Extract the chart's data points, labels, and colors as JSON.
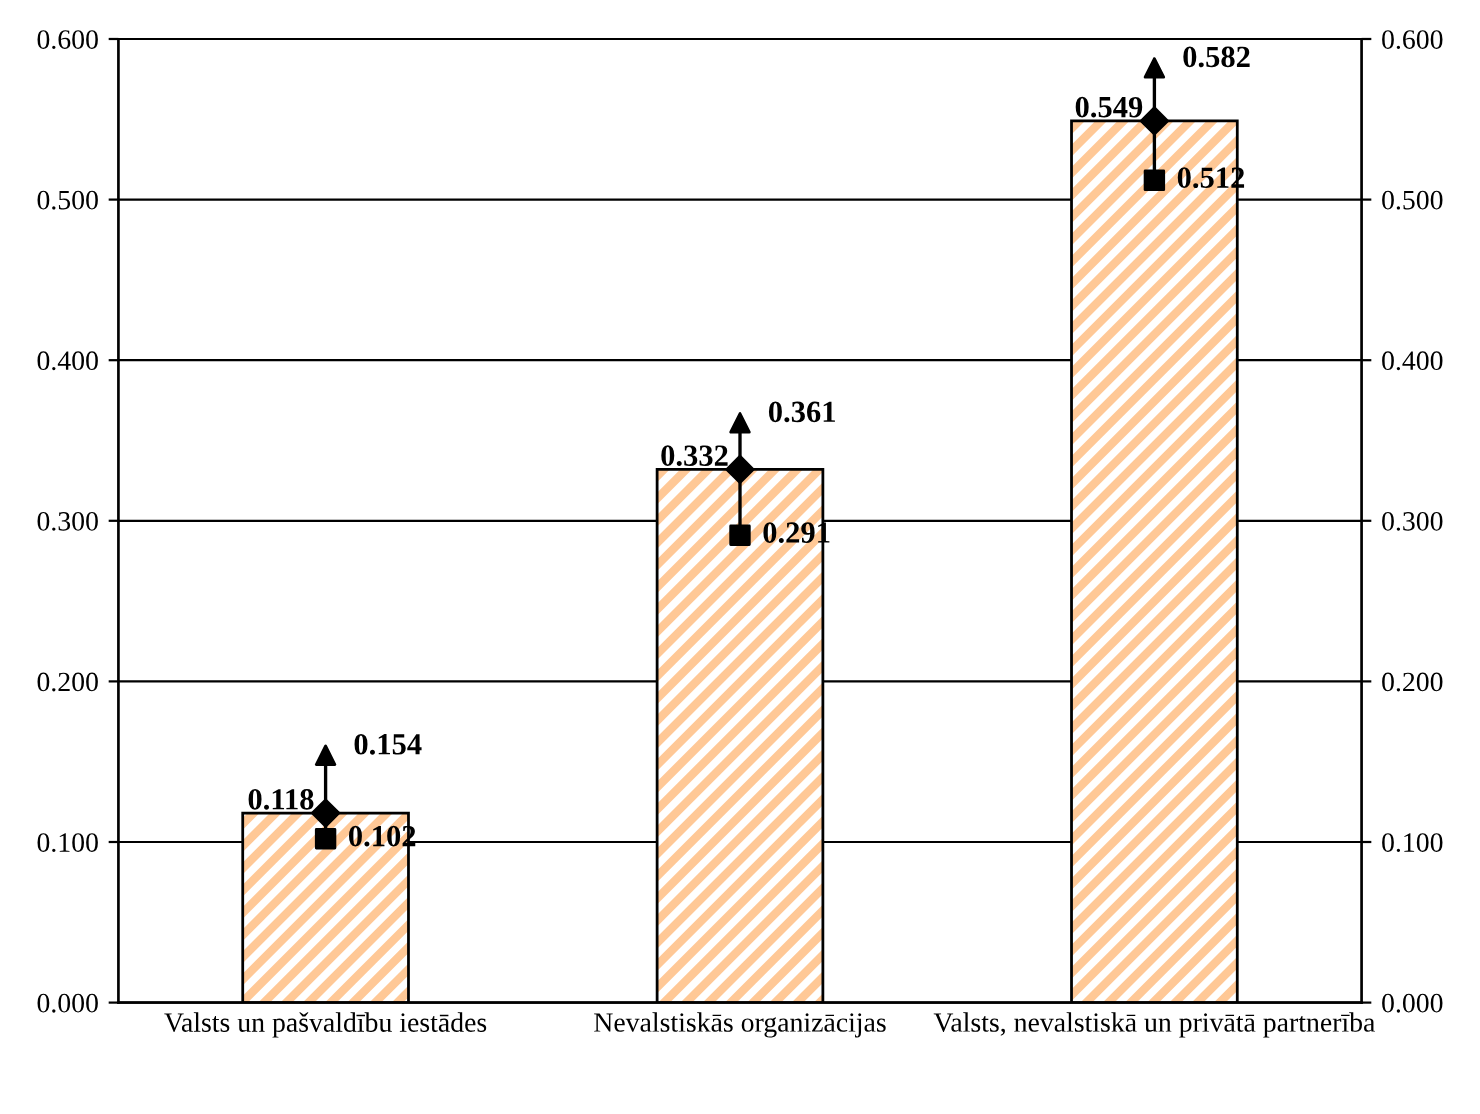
{
  "chart_data": {
    "type": "bar",
    "categories": [
      "Valsts un pašvaldību iestādes",
      "Nevalstiskās organizācijas",
      "Valsts, nevalstiskā un privātā partnerība"
    ],
    "series": [
      {
        "color": "#ffc896",
        "values": [
          0.118,
          0.332,
          0.549
        ]
      },
      {
        "type": "scatter",
        "marker": "diamond",
        "color": "#000000",
        "x": [
          "Valsts un pašvaldību iestādes",
          "Nevalstiskās organizācijas",
          "Valsts, nevalstiskā un privātā partnerība"
        ],
        "values": [
          0.118,
          0.332,
          0.549
        ],
        "value_labels": [
          "0.118",
          "0.332",
          "0.549"
        ]
      },
      {
        "type": "line",
        "color": "#000000",
        "x": [
          "Valsts un pašvaldību iestādes",
          "Valsts un pašvaldību iestādes",
          "Valsts un pašvaldību iestādes",
          "Nevalstiskās organizācijas",
          "Nevalstiskās organizācijas",
          "Nevalstiskās organizācijas",
          "Valsts, nevalstiskā un privātā partnerība",
          "Valsts, nevalstiskā un privātā partnerība"
        ],
        "values": [
          0.102,
          0.154,
          null,
          0.291,
          0.361,
          null,
          0.512,
          0.582
        ]
      },
      {
        "type": "scatter",
        "marker": "triangle",
        "color": "#000000",
        "x": [
          "Valsts un pašvaldību iestādes",
          "Nevalstiskās organizācijas",
          "Valsts, nevalstiskā un privātā partnerība"
        ],
        "values": [
          0.154,
          0.361,
          0.582
        ],
        "value_labels": [
          "0.154",
          "0.361",
          "0.582"
        ]
      },
      {
        "type": "scatter",
        "marker": "square",
        "color": "#000000",
        "x": [
          "Valsts un pašvaldību iestādes",
          "Nevalstiskās organizācijas",
          "Valsts, nevalstiskā un privātā partnerība"
        ],
        "values": [
          0.102,
          0.291,
          0.512
        ],
        "value_labels": [
          "0.102",
          "0.291",
          "0.512"
        ]
      }
    ],
    "ylim": [
      0,
      0.6
    ],
    "yticks": [
      {
        "value": 0,
        "label": "0.000"
      },
      {
        "value": 0.1,
        "label": "0.100"
      },
      {
        "value": 0.2,
        "label": "0.200"
      },
      {
        "value": 0.3,
        "label": "0.300"
      },
      {
        "value": 0.4,
        "label": "0.400"
      },
      {
        "value": 0.5,
        "label": "0.500"
      },
      {
        "value": 0.6,
        "label": "0.600"
      }
    ],
    "y2lim": [
      0,
      0.6
    ],
    "y2ticks": [
      {
        "value": 0,
        "label": "0.000"
      },
      {
        "value": 0.1,
        "label": "0.100"
      },
      {
        "value": 0.2,
        "label": "0.200"
      },
      {
        "value": 0.3,
        "label": "0.300"
      },
      {
        "value": 0.4,
        "label": "0.400"
      },
      {
        "value": 0.5,
        "label": "0.500"
      },
      {
        "value": 0.6,
        "label": "0.600"
      }
    ],
    "grid": "y"
  }
}
